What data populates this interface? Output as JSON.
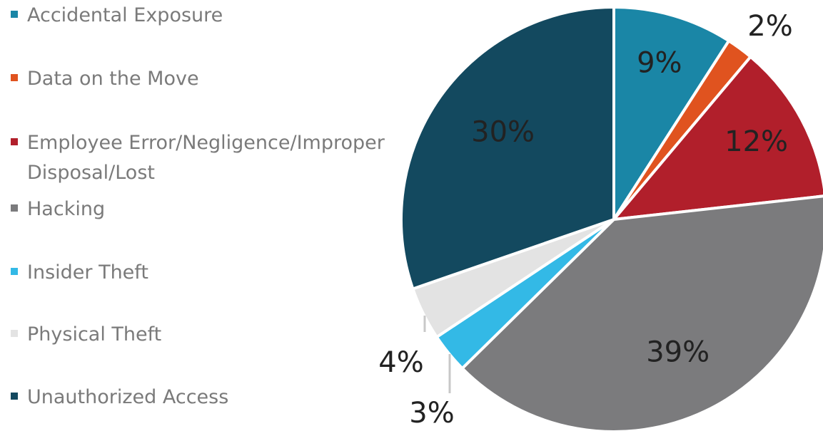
{
  "chart_data": {
    "type": "pie",
    "slices": [
      {
        "label": "Accidental Exposure",
        "value": 9,
        "display": "9%",
        "color": "#1a86a6"
      },
      {
        "label": "Data on the Move",
        "value": 2,
        "display": "2%",
        "color": "#e0531f"
      },
      {
        "label": "Employee Error/Negligence/Improper Disposal/Lost",
        "value": 12,
        "display": "12%",
        "color": "#b11f2b"
      },
      {
        "label": "Hacking",
        "value": 39,
        "display": "39%",
        "color": "#7b7b7d"
      },
      {
        "label": "Insider Theft",
        "value": 3,
        "display": "3%",
        "color": "#33b9e6"
      },
      {
        "label": "Physical Theft",
        "value": 4,
        "display": "4%",
        "color": "#e3e3e3"
      },
      {
        "label": "Unauthorized Access",
        "value": 30,
        "display": "30%",
        "color": "#13495f"
      }
    ],
    "legend": {
      "placement": "left",
      "entries": [
        {
          "lines": [
            "Accidental Exposure"
          ]
        },
        {
          "lines": [
            "Data on the Move"
          ]
        },
        {
          "lines": [
            "Employee Error/Negligence/Improper",
            "Disposal/Lost"
          ]
        },
        {
          "lines": [
            "Hacking"
          ]
        },
        {
          "lines": [
            "Insider Theft"
          ]
        },
        {
          "lines": [
            "Physical Theft"
          ]
        },
        {
          "lines": [
            "Unauthorized Access"
          ]
        }
      ]
    }
  }
}
